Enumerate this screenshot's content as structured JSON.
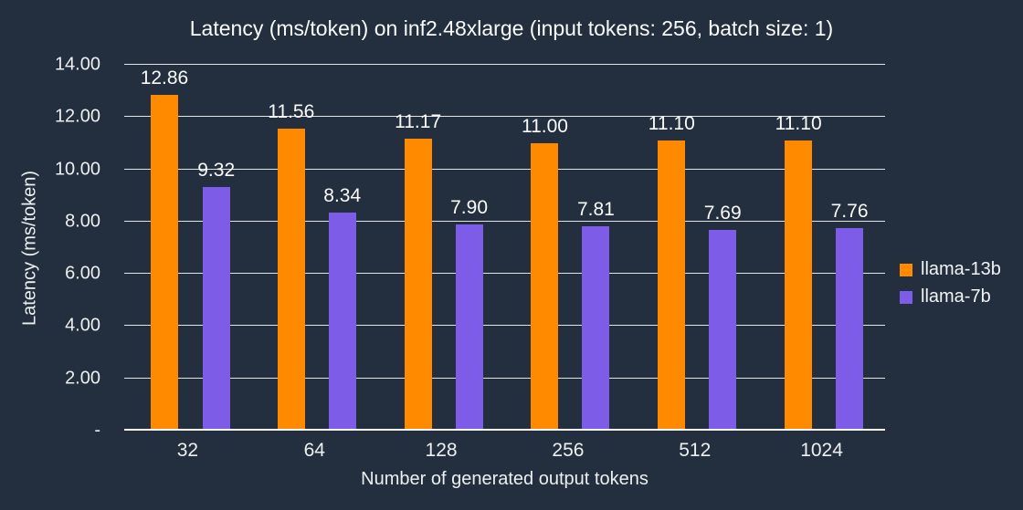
{
  "colors": {
    "background": "#232F3E",
    "grid": "#FFFFFF",
    "text": "#F2F3F3"
  },
  "chart_data": {
    "type": "bar",
    "title": "Latency (ms/token) on inf2.48xlarge (input tokens: 256, batch size: 1)",
    "xlabel": "Number of generated output tokens",
    "ylabel": "Latency (ms/token)",
    "categories": [
      "32",
      "64",
      "128",
      "256",
      "512",
      "1024"
    ],
    "series": [
      {
        "name": "llama-13b",
        "color": "#FF8A00",
        "values": [
          12.86,
          11.56,
          11.17,
          11.0,
          11.1,
          11.1
        ]
      },
      {
        "name": "llama-7b",
        "color": "#7D5CE8",
        "values": [
          9.32,
          8.34,
          7.9,
          7.81,
          7.69,
          7.76
        ]
      }
    ],
    "value_label_decimals": 2,
    "ylim": [
      0,
      14
    ],
    "yticks": [
      {
        "value": 0,
        "label": "-"
      },
      {
        "value": 2,
        "label": "2.00"
      },
      {
        "value": 4,
        "label": "4.00"
      },
      {
        "value": 6,
        "label": "6.00"
      },
      {
        "value": 8,
        "label": "8.00"
      },
      {
        "value": 10,
        "label": "10.00"
      },
      {
        "value": 12,
        "label": "12.00"
      },
      {
        "value": 14,
        "label": "14.00"
      }
    ],
    "grid": true,
    "legend_position": "right"
  }
}
